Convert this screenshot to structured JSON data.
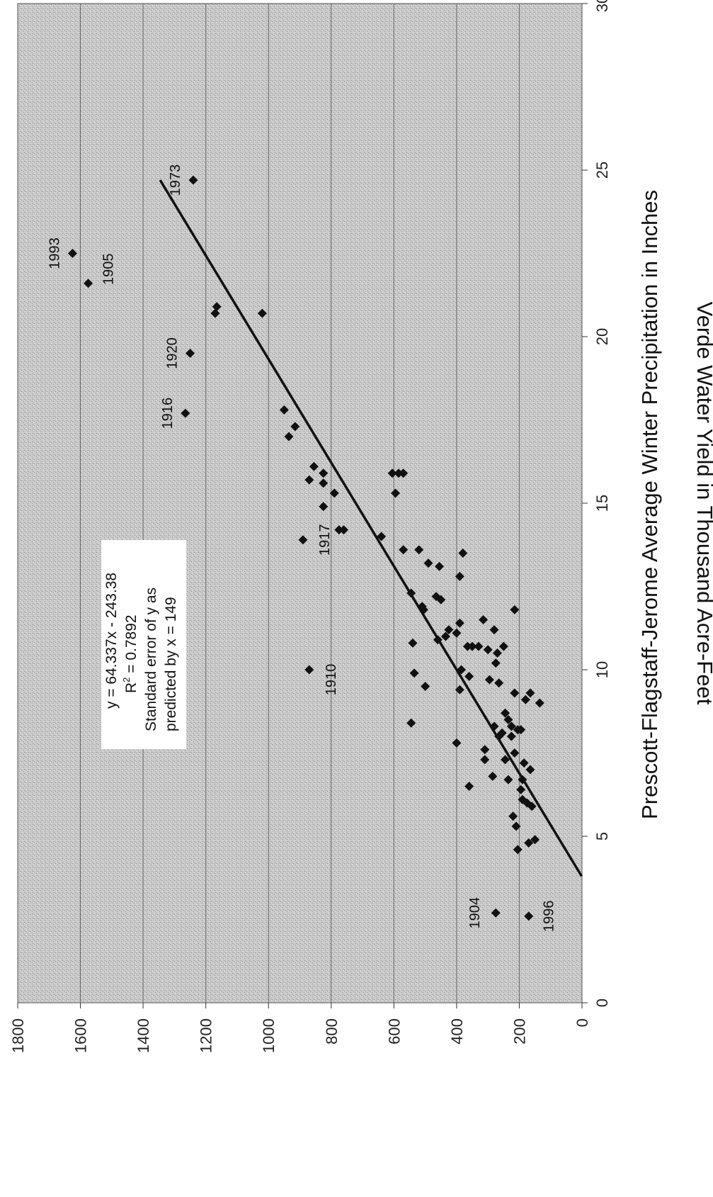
{
  "chart_data": {
    "type": "scatter",
    "title": "",
    "xlabel": "Prescott-Flagstaff-Jerome Average Winter Precipitation in Inches",
    "ylabel": "Verde Water Yield in Thousand Acre-Feet",
    "xlim": [
      0,
      30
    ],
    "ylim": [
      0,
      1800
    ],
    "x_ticks": [
      "0",
      "5",
      "10",
      "15",
      "20",
      "25",
      "30"
    ],
    "y_ticks": [
      "0",
      "200",
      "400",
      "600",
      "800",
      "1000",
      "1200",
      "1400",
      "1600",
      "1800"
    ],
    "grid": "horizontal",
    "marker": "diamond",
    "trendline": {
      "equation": "y = 64.337x - 243.38",
      "r2_prefix": "R",
      "r2_exponent": "2",
      "r2_value": " = 0.7892",
      "note_line1": "Standard error of y as",
      "note_line2": "predicted by x = 149",
      "slope": 64.337,
      "intercept": -243.38,
      "x_range": [
        3.8,
        24.7
      ]
    },
    "labeled_points": [
      {
        "year": "1904",
        "x": 2.7,
        "y": 275
      },
      {
        "year": "1996",
        "x": 2.6,
        "y": 170
      },
      {
        "year": "1910",
        "x": 10.0,
        "y": 870
      },
      {
        "year": "1917",
        "x": 13.9,
        "y": 890
      },
      {
        "year": "1916",
        "x": 17.7,
        "y": 1265
      },
      {
        "year": "1920",
        "x": 19.5,
        "y": 1250
      },
      {
        "year": "1905",
        "x": 21.6,
        "y": 1575
      },
      {
        "year": "1993",
        "x": 22.5,
        "y": 1625
      },
      {
        "year": "1973",
        "x": 24.7,
        "y": 1240
      }
    ],
    "points": [
      [
        20.9,
        1165
      ],
      [
        20.7,
        1170
      ],
      [
        20.7,
        1020
      ],
      [
        17.8,
        950
      ],
      [
        17.3,
        915
      ],
      [
        17.0,
        935
      ],
      [
        16.1,
        855
      ],
      [
        15.9,
        825
      ],
      [
        15.6,
        825
      ],
      [
        15.7,
        870
      ],
      [
        15.3,
        790
      ],
      [
        14.9,
        825
      ],
      [
        14.2,
        760
      ],
      [
        14.2,
        775
      ],
      [
        15.9,
        605
      ],
      [
        15.9,
        585
      ],
      [
        15.9,
        570
      ],
      [
        15.3,
        595
      ],
      [
        14.0,
        640
      ],
      [
        13.6,
        570
      ],
      [
        13.6,
        520
      ],
      [
        13.5,
        380
      ],
      [
        13.2,
        490
      ],
      [
        13.1,
        455
      ],
      [
        12.8,
        390
      ],
      [
        12.3,
        545
      ],
      [
        12.2,
        465
      ],
      [
        12.1,
        450
      ],
      [
        11.9,
        510
      ],
      [
        11.8,
        505
      ],
      [
        11.8,
        215
      ],
      [
        11.5,
        315
      ],
      [
        11.4,
        390
      ],
      [
        11.2,
        425
      ],
      [
        11.2,
        280
      ],
      [
        11.1,
        400
      ],
      [
        11.0,
        435
      ],
      [
        10.9,
        460
      ],
      [
        10.8,
        540
      ],
      [
        10.7,
        365
      ],
      [
        10.7,
        350
      ],
      [
        10.7,
        330
      ],
      [
        10.7,
        250
      ],
      [
        10.6,
        300
      ],
      [
        10.5,
        270
      ],
      [
        10.2,
        275
      ],
      [
        10.0,
        385
      ],
      [
        9.9,
        535
      ],
      [
        9.8,
        360
      ],
      [
        9.7,
        295
      ],
      [
        9.6,
        265
      ],
      [
        9.5,
        500
      ],
      [
        9.4,
        390
      ],
      [
        9.3,
        215
      ],
      [
        9.3,
        165
      ],
      [
        9.1,
        180
      ],
      [
        9.0,
        135
      ],
      [
        8.7,
        245
      ],
      [
        8.5,
        235
      ],
      [
        8.4,
        545
      ],
      [
        8.3,
        280
      ],
      [
        8.3,
        225
      ],
      [
        8.2,
        205
      ],
      [
        8.2,
        195
      ],
      [
        8.1,
        255
      ],
      [
        8.0,
        265
      ],
      [
        8.0,
        225
      ],
      [
        7.8,
        400
      ],
      [
        7.6,
        310
      ],
      [
        7.5,
        215
      ],
      [
        7.3,
        245
      ],
      [
        7.3,
        310
      ],
      [
        7.2,
        185
      ],
      [
        7.0,
        165
      ],
      [
        6.8,
        285
      ],
      [
        6.7,
        235
      ],
      [
        6.7,
        190
      ],
      [
        6.5,
        360
      ],
      [
        6.4,
        195
      ],
      [
        6.1,
        190
      ],
      [
        6.0,
        175
      ],
      [
        5.9,
        160
      ],
      [
        5.6,
        220
      ],
      [
        5.3,
        210
      ],
      [
        4.9,
        150
      ],
      [
        4.8,
        170
      ],
      [
        4.6,
        205
      ]
    ]
  }
}
